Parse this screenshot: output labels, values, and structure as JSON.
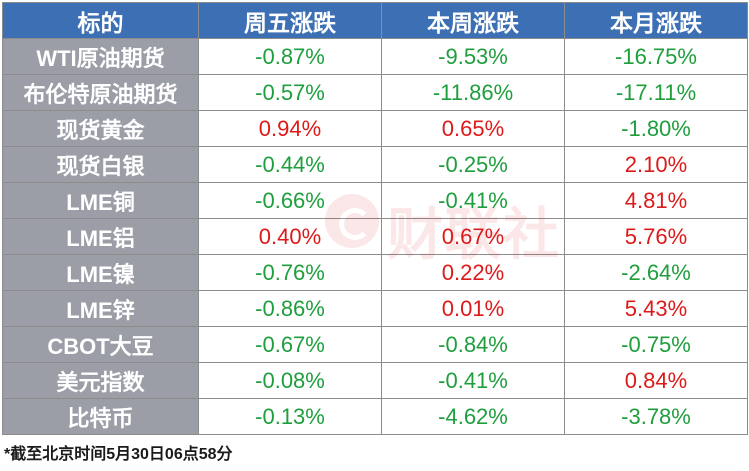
{
  "headers": [
    "标的",
    "周五涨跌",
    "本周涨跌",
    "本月涨跌"
  ],
  "rows": [
    {
      "name": "WTI原油期货",
      "values": [
        "-0.87%",
        "-9.53%",
        "-16.75%"
      ]
    },
    {
      "name": "布伦特原油期货",
      "values": [
        "-0.57%",
        "-11.86%",
        "-17.11%"
      ]
    },
    {
      "name": "现货黄金",
      "values": [
        "0.94%",
        "0.65%",
        "-1.80%"
      ]
    },
    {
      "name": "现货白银",
      "values": [
        "-0.44%",
        "-0.25%",
        "2.10%"
      ]
    },
    {
      "name": "LME铜",
      "values": [
        "-0.66%",
        "-0.41%",
        "4.81%"
      ]
    },
    {
      "name": "LME铝",
      "values": [
        "0.40%",
        "0.67%",
        "5.76%"
      ]
    },
    {
      "name": "LME镍",
      "values": [
        "-0.76%",
        "0.22%",
        "-2.64%"
      ]
    },
    {
      "name": "LME锌",
      "values": [
        "-0.86%",
        "0.01%",
        "5.43%"
      ]
    },
    {
      "name": "CBOT大豆",
      "values": [
        "-0.67%",
        "-0.84%",
        "-0.75%"
      ]
    },
    {
      "name": "美元指数",
      "values": [
        "-0.08%",
        "-0.41%",
        "0.84%"
      ]
    },
    {
      "name": "比特币",
      "values": [
        "-0.13%",
        "-4.62%",
        "-3.78%"
      ]
    }
  ],
  "footnote": "*截至北京时间5月30日06点58分",
  "watermark_text": "财联社",
  "colors": {
    "header_bg": "#3c6fb3",
    "name_bg": "#9b9ea6",
    "up": "#dd1a1a",
    "down": "#1f9e3e"
  }
}
